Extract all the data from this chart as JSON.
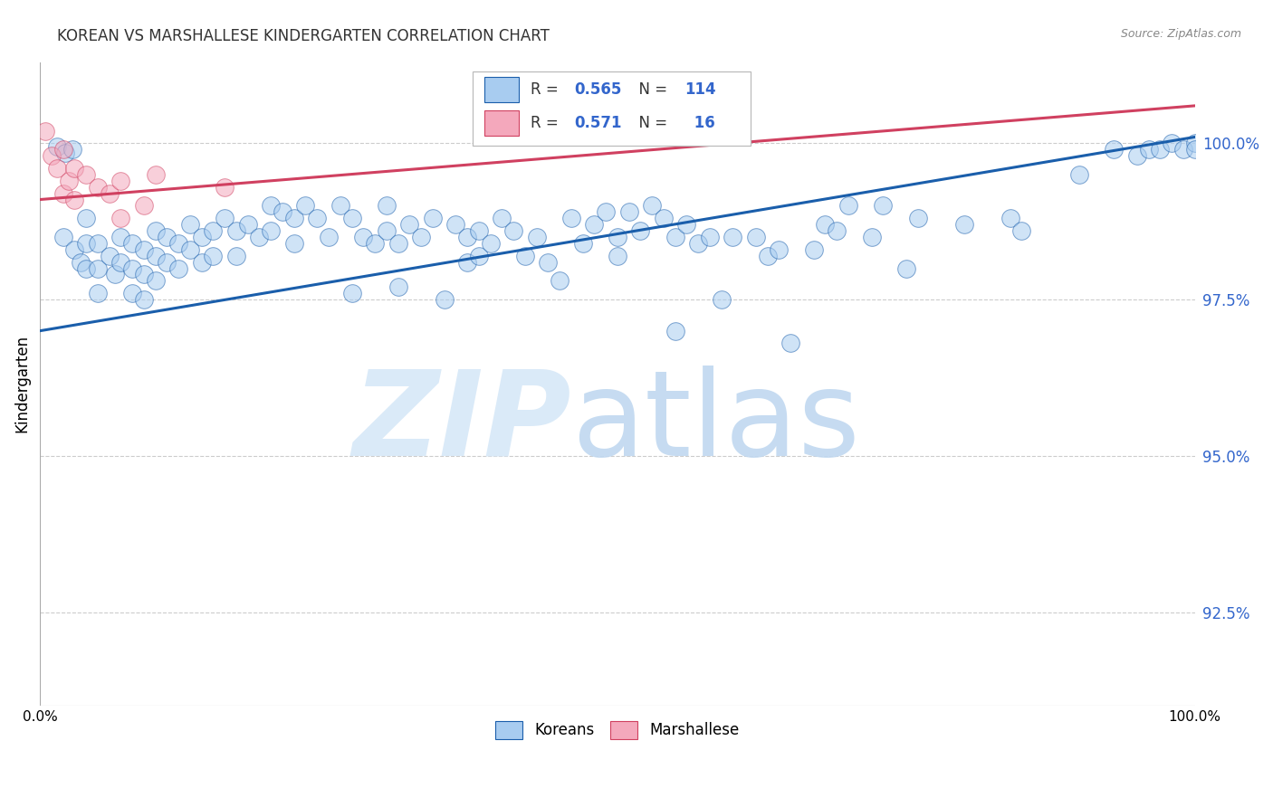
{
  "title": "KOREAN VS MARSHALLESE KINDERGARTEN CORRELATION CHART",
  "source": "Source: ZipAtlas.com",
  "ylabel": "Kindergarten",
  "ytick_labels": [
    "92.5%",
    "95.0%",
    "97.5%",
    "100.0%"
  ],
  "ytick_values": [
    0.925,
    0.95,
    0.975,
    1.0
  ],
  "xmin": 0.0,
  "xmax": 1.0,
  "ymin": 0.91,
  "ymax": 1.013,
  "blue_color": "#A8CCF0",
  "pink_color": "#F4A8BC",
  "trendline_blue": "#1A5EAB",
  "trendline_pink": "#D04060",
  "blue_scatter": [
    [
      0.015,
      0.9995
    ],
    [
      0.022,
      0.9985
    ],
    [
      0.028,
      0.999
    ],
    [
      0.02,
      0.985
    ],
    [
      0.03,
      0.983
    ],
    [
      0.035,
      0.981
    ],
    [
      0.04,
      0.988
    ],
    [
      0.04,
      0.984
    ],
    [
      0.04,
      0.98
    ],
    [
      0.05,
      0.984
    ],
    [
      0.05,
      0.98
    ],
    [
      0.05,
      0.976
    ],
    [
      0.06,
      0.982
    ],
    [
      0.065,
      0.979
    ],
    [
      0.07,
      0.985
    ],
    [
      0.07,
      0.981
    ],
    [
      0.08,
      0.984
    ],
    [
      0.08,
      0.98
    ],
    [
      0.08,
      0.976
    ],
    [
      0.09,
      0.983
    ],
    [
      0.09,
      0.979
    ],
    [
      0.09,
      0.975
    ],
    [
      0.1,
      0.986
    ],
    [
      0.1,
      0.982
    ],
    [
      0.1,
      0.978
    ],
    [
      0.11,
      0.985
    ],
    [
      0.11,
      0.981
    ],
    [
      0.12,
      0.984
    ],
    [
      0.12,
      0.98
    ],
    [
      0.13,
      0.987
    ],
    [
      0.13,
      0.983
    ],
    [
      0.14,
      0.985
    ],
    [
      0.14,
      0.981
    ],
    [
      0.15,
      0.986
    ],
    [
      0.15,
      0.982
    ],
    [
      0.16,
      0.988
    ],
    [
      0.17,
      0.986
    ],
    [
      0.17,
      0.982
    ],
    [
      0.18,
      0.987
    ],
    [
      0.19,
      0.985
    ],
    [
      0.2,
      0.99
    ],
    [
      0.2,
      0.986
    ],
    [
      0.21,
      0.989
    ],
    [
      0.22,
      0.988
    ],
    [
      0.22,
      0.984
    ],
    [
      0.23,
      0.99
    ],
    [
      0.24,
      0.988
    ],
    [
      0.25,
      0.985
    ],
    [
      0.26,
      0.99
    ],
    [
      0.27,
      0.988
    ],
    [
      0.27,
      0.976
    ],
    [
      0.28,
      0.985
    ],
    [
      0.29,
      0.984
    ],
    [
      0.3,
      0.99
    ],
    [
      0.3,
      0.986
    ],
    [
      0.31,
      0.984
    ],
    [
      0.31,
      0.977
    ],
    [
      0.32,
      0.987
    ],
    [
      0.33,
      0.985
    ],
    [
      0.34,
      0.988
    ],
    [
      0.35,
      0.975
    ],
    [
      0.36,
      0.987
    ],
    [
      0.37,
      0.985
    ],
    [
      0.37,
      0.981
    ],
    [
      0.38,
      0.986
    ],
    [
      0.38,
      0.982
    ],
    [
      0.39,
      0.984
    ],
    [
      0.4,
      0.988
    ],
    [
      0.41,
      0.986
    ],
    [
      0.42,
      0.982
    ],
    [
      0.43,
      0.985
    ],
    [
      0.44,
      0.981
    ],
    [
      0.45,
      0.978
    ],
    [
      0.46,
      0.988
    ],
    [
      0.47,
      0.984
    ],
    [
      0.48,
      0.987
    ],
    [
      0.49,
      0.989
    ],
    [
      0.5,
      0.985
    ],
    [
      0.5,
      0.982
    ],
    [
      0.51,
      0.989
    ],
    [
      0.52,
      0.986
    ],
    [
      0.53,
      0.99
    ],
    [
      0.54,
      0.988
    ],
    [
      0.55,
      0.985
    ],
    [
      0.55,
      0.97
    ],
    [
      0.56,
      0.987
    ],
    [
      0.57,
      0.984
    ],
    [
      0.58,
      0.985
    ],
    [
      0.59,
      0.975
    ],
    [
      0.6,
      0.985
    ],
    [
      0.62,
      0.985
    ],
    [
      0.63,
      0.982
    ],
    [
      0.64,
      0.983
    ],
    [
      0.65,
      0.968
    ],
    [
      0.67,
      0.983
    ],
    [
      0.68,
      0.987
    ],
    [
      0.69,
      0.986
    ],
    [
      0.7,
      0.99
    ],
    [
      0.72,
      0.985
    ],
    [
      0.73,
      0.99
    ],
    [
      0.75,
      0.98
    ],
    [
      0.76,
      0.988
    ],
    [
      0.8,
      0.987
    ],
    [
      0.84,
      0.988
    ],
    [
      0.85,
      0.986
    ],
    [
      0.9,
      0.995
    ],
    [
      0.93,
      0.999
    ],
    [
      0.95,
      0.998
    ],
    [
      0.96,
      0.999
    ],
    [
      0.97,
      0.999
    ],
    [
      0.98,
      1.0
    ],
    [
      0.99,
      0.999
    ],
    [
      1.0,
      1.0
    ],
    [
      1.0,
      0.999
    ]
  ],
  "pink_scatter": [
    [
      0.005,
      1.002
    ],
    [
      0.01,
      0.998
    ],
    [
      0.015,
      0.996
    ],
    [
      0.02,
      0.999
    ],
    [
      0.02,
      0.992
    ],
    [
      0.025,
      0.994
    ],
    [
      0.03,
      0.996
    ],
    [
      0.03,
      0.991
    ],
    [
      0.04,
      0.995
    ],
    [
      0.05,
      0.993
    ],
    [
      0.06,
      0.992
    ],
    [
      0.07,
      0.994
    ],
    [
      0.07,
      0.988
    ],
    [
      0.09,
      0.99
    ],
    [
      0.1,
      0.995
    ],
    [
      0.16,
      0.993
    ]
  ],
  "blue_trendline_x": [
    0.0,
    1.0
  ],
  "blue_trendline_y": [
    0.97,
    1.001
  ],
  "pink_trendline_x": [
    0.0,
    1.0
  ],
  "pink_trendline_y": [
    0.991,
    1.006
  ]
}
